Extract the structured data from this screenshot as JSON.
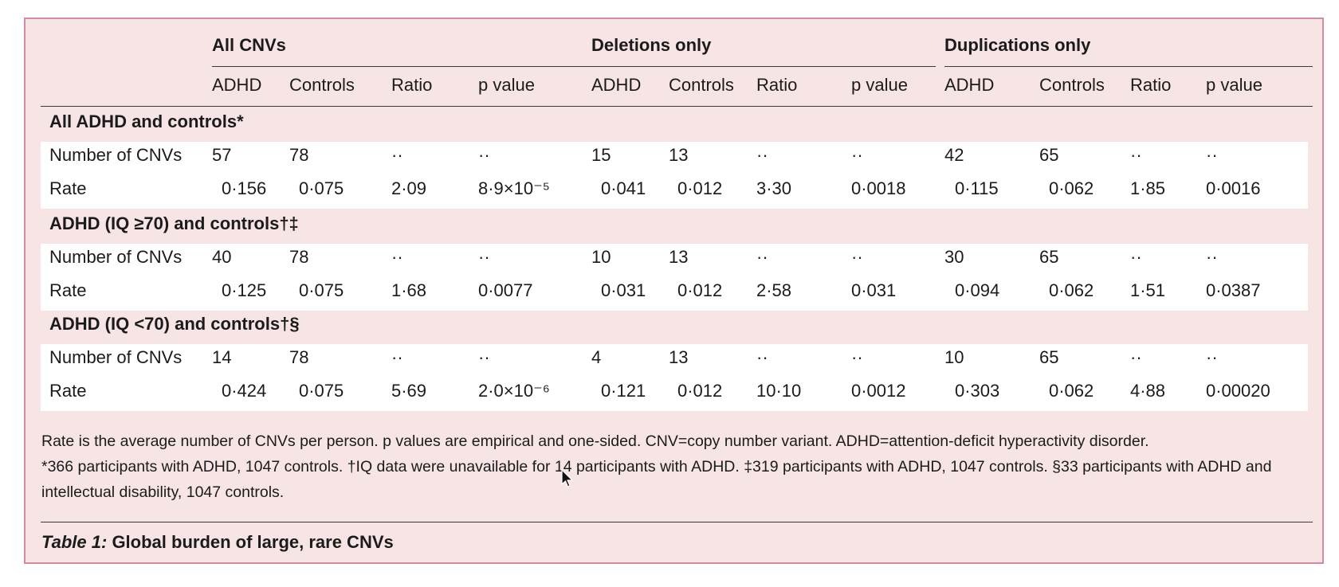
{
  "table": {
    "groups": [
      "All CNVs",
      "Deletions only",
      "Duplications only"
    ],
    "columns": [
      "ADHD",
      "Controls",
      "Ratio",
      "p value",
      "ADHD",
      "Controls",
      "Ratio",
      "p value",
      "ADHD",
      "Controls",
      "Ratio",
      "p value"
    ],
    "sections": [
      {
        "title": "All ADHD and controls*",
        "rows": [
          {
            "label": "Number of CNVs",
            "cells": [
              "57",
              "78",
              "··",
              "··",
              "15",
              "13",
              "··",
              "··",
              "42",
              "65",
              "··",
              "··"
            ]
          },
          {
            "label": "Rate",
            "cells": [
              "0·156",
              "0·075",
              "2·09",
              "8·9×10⁻⁵",
              "0·041",
              "0·012",
              "3·30",
              "0·0018",
              "0·115",
              "0·062",
              "1·85",
              "0·0016"
            ]
          }
        ]
      },
      {
        "title": "ADHD (IQ ≥70) and controls†‡",
        "rows": [
          {
            "label": "Number of CNVs",
            "cells": [
              "40",
              "78",
              "··",
              "··",
              "10",
              "13",
              "··",
              "··",
              "30",
              "65",
              "··",
              "··"
            ]
          },
          {
            "label": "Rate",
            "cells": [
              "0·125",
              "0·075",
              "1·68",
              "0·0077",
              "0·031",
              "0·012",
              "2·58",
              "0·031",
              "0·094",
              "0·062",
              "1·51",
              "0·0387"
            ]
          }
        ]
      },
      {
        "title": "ADHD (IQ <70) and controls†§",
        "rows": [
          {
            "label": "Number of CNVs",
            "cells": [
              "14",
              "78",
              "··",
              "··",
              "4",
              "13",
              "··",
              "··",
              "10",
              "65",
              "··",
              "··"
            ]
          },
          {
            "label": "Rate",
            "cells": [
              "0·424",
              "0·075",
              "5·69",
              "2·0×10⁻⁶",
              "0·121",
              "0·012",
              "10·10",
              "0·0012",
              "0·303",
              "0·062",
              "4·88",
              "0·00020"
            ]
          }
        ]
      }
    ]
  },
  "footnotes": [
    "Rate is the average number of CNVs per person. p values are empirical and one-sided. CNV=copy number variant. ADHD=attention-deficit hyperactivity disorder.",
    "*366 participants with ADHD, 1047 controls. †IQ data were unavailable for 14 participants with ADHD. ‡319 participants with ADHD, 1047 controls. §33 participants with ADHD and intellectual disability, 1047 controls."
  ],
  "caption": {
    "label": "Table 1:",
    "title": " Global burden of large, rare CNVs"
  },
  "colors": {
    "panel_background": "#f7e4e4",
    "panel_border": "#d48a9f",
    "row_band": "#ffffff"
  },
  "icons": [
    "mouse-cursor-icon"
  ]
}
